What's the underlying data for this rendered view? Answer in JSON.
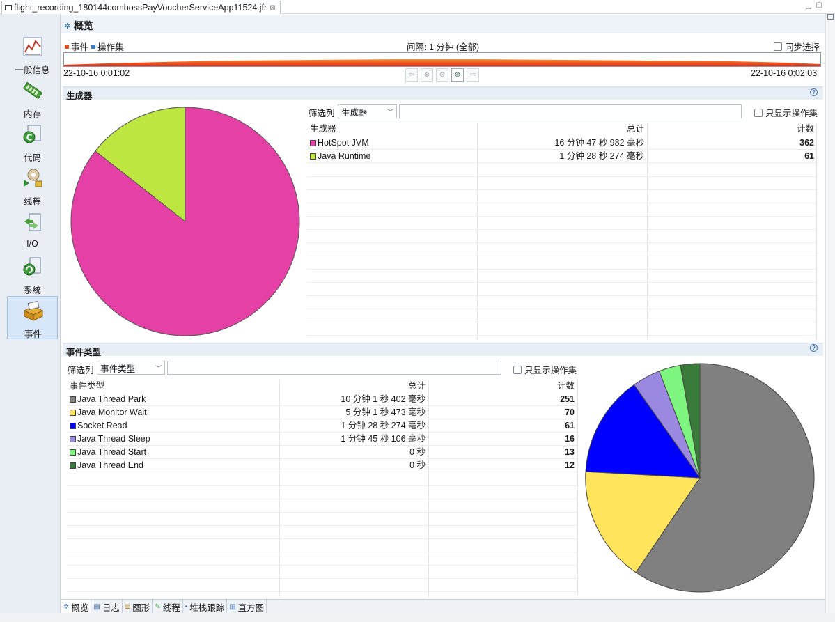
{
  "editor": {
    "tab_title": "flight_recording_180144combossPayVoucherServiceApp11524.jfr",
    "close_glyph": "⊠"
  },
  "nav": {
    "items": [
      {
        "label": "一般信息",
        "icon": "chart-icon"
      },
      {
        "label": "内存",
        "icon": "memory-icon"
      },
      {
        "label": "代码",
        "icon": "code-icon"
      },
      {
        "label": "线程",
        "icon": "threads-icon"
      },
      {
        "label": "I/O",
        "icon": "io-icon"
      },
      {
        "label": "系统",
        "icon": "system-icon"
      },
      {
        "label": "事件",
        "icon": "events-icon"
      }
    ],
    "active_index": 6
  },
  "overview": {
    "title": "概览",
    "legend_events": "事件",
    "legend_ops": "操作集",
    "interval": "间隔: 1 分钟 (全部)",
    "sync_select": "同步选择",
    "time_start": "22-10-16 0:01:02",
    "time_end": "22-10-16 0:02:03",
    "colors": {
      "events": "#e0501a",
      "ops": "#3a78c8"
    }
  },
  "producers": {
    "title": "生成器",
    "filter_label": "筛选列",
    "filter_column": "生成器",
    "only_ops": "只显示操作集",
    "columns": [
      "生成器",
      "总计",
      "计数"
    ],
    "rows": [
      {
        "name": "HotSpot JVM",
        "total": "16 分钟 47 秒 982 毫秒",
        "count": "362",
        "color": "#e540a5"
      },
      {
        "name": "Java Runtime",
        "total": "1 分钟 28 秒 274 毫秒",
        "count": "61",
        "color": "#bde640"
      }
    ]
  },
  "event_types": {
    "title": "事件类型",
    "filter_label": "筛选列",
    "filter_column": "事件类型",
    "only_ops": "只显示操作集",
    "columns": [
      "事件类型",
      "总计",
      "计数"
    ],
    "rows": [
      {
        "name": "Java Thread Park",
        "total": "10 分钟 1 秒 402 毫秒",
        "count": "251",
        "color": "#808080"
      },
      {
        "name": "Java Monitor Wait",
        "total": "5 分钟 1 秒 473 毫秒",
        "count": "70",
        "color": "#ffe45c"
      },
      {
        "name": "Socket Read",
        "total": "1 分钟 28 秒 274 毫秒",
        "count": "61",
        "color": "#0000ff"
      },
      {
        "name": "Java Thread Sleep",
        "total": "1 分钟 45 秒 106 毫秒",
        "count": "16",
        "color": "#9b88e0"
      },
      {
        "name": "Java Thread Start",
        "total": "0 秒",
        "count": "13",
        "color": "#7ef57e"
      },
      {
        "name": "Java Thread End",
        "total": "0 秒",
        "count": "12",
        "color": "#3a7a3a"
      }
    ]
  },
  "bottom_tabs": [
    {
      "label": "概览",
      "icon": "overview-icon"
    },
    {
      "label": "日志",
      "icon": "log-icon"
    },
    {
      "label": "图形",
      "icon": "graph-icon"
    },
    {
      "label": "线程",
      "icon": "thread-icon"
    },
    {
      "label": "堆栈跟踪",
      "icon": "stacktrace-icon"
    },
    {
      "label": "直方图",
      "icon": "histogram-icon"
    }
  ]
}
